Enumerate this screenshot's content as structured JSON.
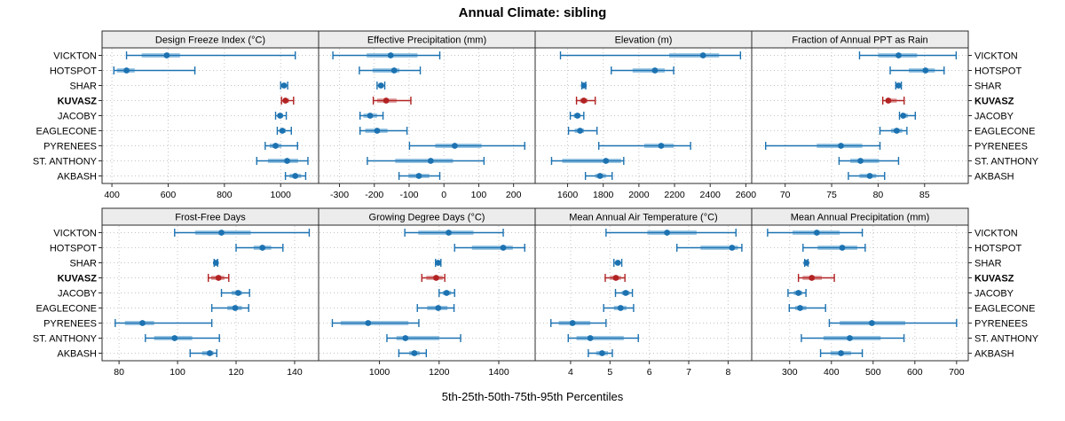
{
  "title": "Annual Climate: sibling",
  "caption": "5th-25th-50th-75th-95th Percentiles",
  "percentiles": [
    "5th",
    "25th",
    "50th",
    "75th",
    "95th"
  ],
  "sites": [
    "VICKTON",
    "HOTSPOT",
    "SHAR",
    "KUVASZ",
    "JACOBY",
    "EAGLECONE",
    "PYRENEES",
    "ST. ANTHONY",
    "AKBASH"
  ],
  "highlight_site": "KUVASZ",
  "colors": {
    "point": "#1c72b1",
    "band": "#9ec8e4",
    "highlight_point": "#b22222",
    "highlight_band": "#e2a9a9",
    "strip_bg": "#ececec",
    "panel_border": "#2b2b2b",
    "grid": "#c4c4c4",
    "text": "#000000"
  },
  "chart_data": [
    {
      "type": "dotplot-interval",
      "title": "Design Freeze Index (°C)",
      "xlim": [
        365,
        1135
      ],
      "ticks": [
        400,
        600,
        800,
        1000
      ],
      "values": [
        [
          452,
          506,
          595,
          642,
          1052
        ],
        [
          407,
          418,
          452,
          481,
          695
        ],
        [
          1000,
          1007,
          1012,
          1018,
          1025
        ],
        [
          1003,
          1010,
          1017,
          1030,
          1046
        ],
        [
          982,
          991,
          998,
          1008,
          1020
        ],
        [
          988,
          997,
          1006,
          1018,
          1038
        ],
        [
          945,
          961,
          982,
          1003,
          1060
        ],
        [
          915,
          955,
          1023,
          1062,
          1097
        ],
        [
          1017,
          1032,
          1052,
          1073,
          1089
        ]
      ]
    },
    {
      "type": "dotplot-interval",
      "title": "Effective Precipitation (mm)",
      "xlim": [
        -360,
        262
      ],
      "ticks": [
        -300,
        -200,
        -100,
        0,
        100,
        200
      ],
      "values": [
        [
          -319,
          -222,
          -153,
          -76,
          -12
        ],
        [
          -243,
          -205,
          -143,
          -128,
          -68
        ],
        [
          -192,
          -185,
          -181,
          -176,
          -170
        ],
        [
          -203,
          -192,
          -166,
          -136,
          -95
        ],
        [
          -241,
          -231,
          -212,
          -192,
          -175
        ],
        [
          -241,
          -226,
          -192,
          -162,
          -106
        ],
        [
          -99,
          -25,
          31,
          108,
          232
        ],
        [
          -220,
          -140,
          -38,
          26,
          115
        ],
        [
          -129,
          -102,
          -72,
          -42,
          -12
        ]
      ]
    },
    {
      "type": "dotplot-interval",
      "title": "Elevation (m)",
      "xlim": [
        1418,
        2633
      ],
      "ticks": [
        1600,
        1800,
        2000,
        2200,
        2400,
        2600
      ],
      "values": [
        [
          1560,
          2170,
          2360,
          2450,
          2570
        ],
        [
          1845,
          1965,
          2090,
          2145,
          2195
        ],
        [
          1680,
          1687,
          1691,
          1696,
          1702
        ],
        [
          1650,
          1670,
          1691,
          1712,
          1755
        ],
        [
          1615,
          1635,
          1655,
          1672,
          1691
        ],
        [
          1605,
          1640,
          1670,
          1692,
          1765
        ],
        [
          1775,
          2030,
          2125,
          2195,
          2290
        ],
        [
          1510,
          1570,
          1815,
          1900,
          1915
        ],
        [
          1700,
          1755,
          1782,
          1815,
          1850
        ]
      ]
    },
    {
      "type": "dotplot-interval",
      "title": "Fraction of Annual PPT as Rain",
      "xlim": [
        66.4,
        89.7
      ],
      "ticks": [
        70,
        75,
        80,
        85
      ],
      "values": [
        [
          78.0,
          80.0,
          82.2,
          84.2,
          88.4
        ],
        [
          81.3,
          83.3,
          85.1,
          86.1,
          87.1
        ],
        [
          81.9,
          82.1,
          82.2,
          82.4,
          82.5
        ],
        [
          80.5,
          80.9,
          81.1,
          82.0,
          82.8
        ],
        [
          82.3,
          82.5,
          82.7,
          83.2,
          84.0
        ],
        [
          80.2,
          81.4,
          82.0,
          82.6,
          83.1
        ],
        [
          67.9,
          73.4,
          76.0,
          78.3,
          80.2
        ],
        [
          75.8,
          77.0,
          78.1,
          80.1,
          82.2
        ],
        [
          76.8,
          78.0,
          79.1,
          79.8,
          80.7
        ]
      ]
    },
    {
      "type": "dotplot-interval",
      "title": "Frost-Free Days",
      "xlim": [
        74.2,
        148.2
      ],
      "ticks": [
        80,
        100,
        120,
        140
      ],
      "values": [
        [
          99,
          106,
          115,
          125,
          145
        ],
        [
          120,
          126,
          129,
          132,
          136
        ],
        [
          112.5,
          112.8,
          113.1,
          113.4,
          113.7
        ],
        [
          110.5,
          111.5,
          114,
          116,
          117.5
        ],
        [
          115,
          118.5,
          120.7,
          122,
          124.6
        ],
        [
          111.7,
          117,
          119.7,
          122,
          124.3
        ],
        [
          78.7,
          82,
          88,
          92,
          111.7
        ],
        [
          89,
          92,
          99,
          105,
          114.3
        ],
        [
          104.3,
          108.4,
          111,
          112.3,
          113.4
        ]
      ]
    },
    {
      "type": "dotplot-interval",
      "title": "Growing Degree Days (°C)",
      "xlim": [
        796,
        1522
      ],
      "ticks": [
        1000,
        1200,
        1400
      ],
      "values": [
        [
          1085,
          1130,
          1232,
          1315,
          1415
        ],
        [
          1252,
          1310,
          1415,
          1447,
          1487
        ],
        [
          1188,
          1193,
          1197,
          1201,
          1206
        ],
        [
          1142,
          1157,
          1190,
          1212,
          1219
        ],
        [
          1200,
          1212,
          1225,
          1240,
          1252
        ],
        [
          1127,
          1160,
          1197,
          1228,
          1250
        ],
        [
          842,
          870,
          962,
          1097,
          1132
        ],
        [
          1025,
          1057,
          1087,
          1200,
          1272
        ],
        [
          1065,
          1100,
          1117,
          1135,
          1157
        ]
      ]
    },
    {
      "type": "dotplot-interval",
      "title": "Mean Annual Air Temperature (°C)",
      "xlim": [
        3.1,
        8.6
      ],
      "ticks": [
        4,
        5,
        6,
        7,
        8
      ],
      "values": [
        [
          4.9,
          5.95,
          6.45,
          7.2,
          8.2
        ],
        [
          6.7,
          7.3,
          8.1,
          8.25,
          8.35
        ],
        [
          5.1,
          5.15,
          5.2,
          5.25,
          5.3
        ],
        [
          4.88,
          5.0,
          5.15,
          5.28,
          5.38
        ],
        [
          5.14,
          5.3,
          5.4,
          5.5,
          5.57
        ],
        [
          4.84,
          5.1,
          5.27,
          5.42,
          5.6
        ],
        [
          3.5,
          3.7,
          4.05,
          4.5,
          4.9
        ],
        [
          3.94,
          4.15,
          4.5,
          5.35,
          5.72
        ],
        [
          4.45,
          4.65,
          4.8,
          4.95,
          5.06
        ]
      ]
    },
    {
      "type": "dotplot-interval",
      "title": "Mean Annual Precipitation (mm)",
      "xlim": [
        209,
        728
      ],
      "ticks": [
        300,
        400,
        500,
        600,
        700
      ],
      "values": [
        [
          247,
          307,
          365,
          420,
          474
        ],
        [
          332,
          367,
          426,
          462,
          481
        ],
        [
          336,
          338,
          340,
          342,
          344
        ],
        [
          321,
          331,
          353,
          377,
          407
        ],
        [
          296,
          310,
          321,
          330,
          339
        ],
        [
          299,
          313,
          325,
          340,
          386
        ],
        [
          395,
          420,
          497,
          577,
          700
        ],
        [
          328,
          381,
          444,
          518,
          574
        ],
        [
          374,
          398,
          423,
          447,
          474
        ]
      ]
    }
  ]
}
